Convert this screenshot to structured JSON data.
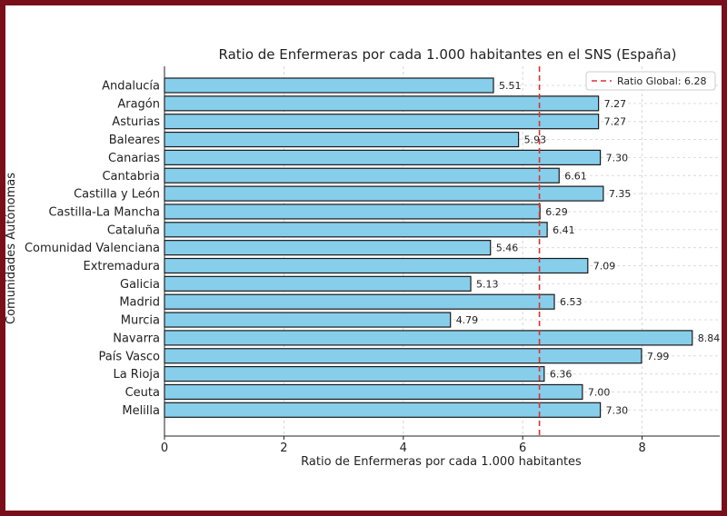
{
  "chart_data": {
    "type": "bar",
    "orientation": "horizontal",
    "title": "Ratio de Enfermeras por cada 1.000 habitantes en el SNS (España)",
    "xlabel": "Ratio de Enfermeras por cada 1.000 habitantes",
    "ylabel": "Comunidades Autónomas",
    "xlim": [
      0,
      9.3
    ],
    "xticks": [
      0,
      2,
      4,
      6,
      8
    ],
    "grid": true,
    "legend_position": "top-right",
    "bar_color": "#87ceeb",
    "bar_edge_color": "#1a1a1a",
    "reference_line": {
      "label": "Ratio Global: 6.28",
      "value": 6.28,
      "color": "#e03030",
      "style": "dashed"
    },
    "categories": [
      "Andalucía",
      "Aragón",
      "Asturias",
      "Baleares",
      "Canarias",
      "Cantabria",
      "Castilla y León",
      "Castilla-La Mancha",
      "Cataluña",
      "Comunidad Valenciana",
      "Extremadura",
      "Galicia",
      "Madrid",
      "Murcia",
      "Navarra",
      "País Vasco",
      "La Rioja",
      "Ceuta",
      "Melilla"
    ],
    "values": [
      5.51,
      7.27,
      7.27,
      5.93,
      7.3,
      6.61,
      7.35,
      6.29,
      6.41,
      5.46,
      7.09,
      5.13,
      6.53,
      4.79,
      8.84,
      7.99,
      6.36,
      7.0,
      7.3
    ],
    "value_labels": [
      "5.51",
      "7.27",
      "7.27",
      "5.93",
      "7.30",
      "6.61",
      "7.35",
      "6.29",
      "6.41",
      "5.46",
      "7.09",
      "5.13",
      "6.53",
      "4.79",
      "8.84",
      "7.99",
      "6.36",
      "7.00",
      "7.30"
    ]
  }
}
